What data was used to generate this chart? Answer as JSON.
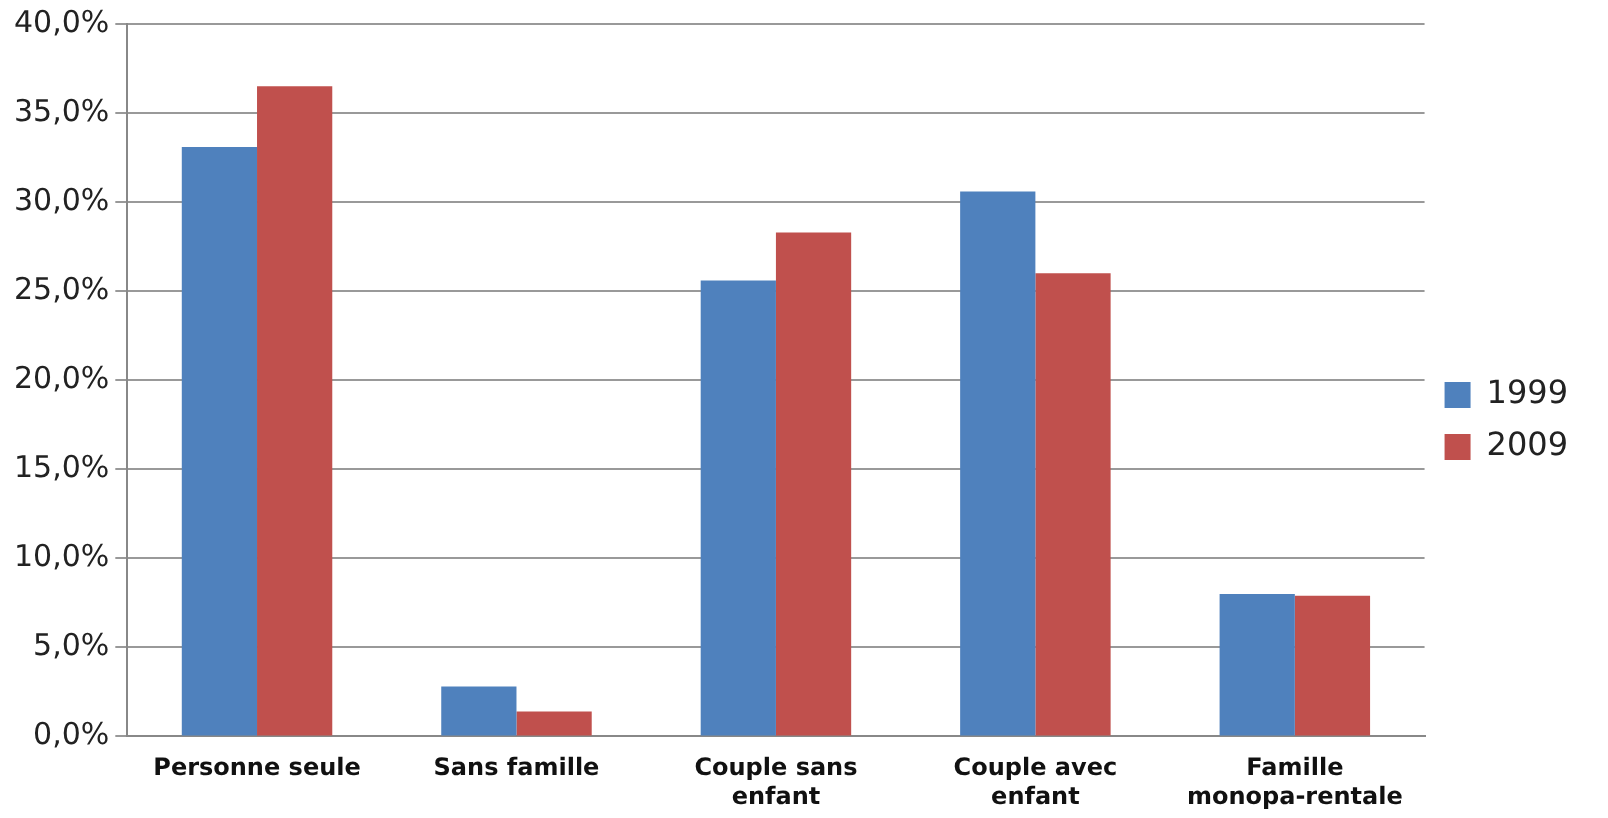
{
  "chart_data": {
    "type": "bar",
    "categories": [
      "Personne seule",
      "Sans famille",
      "Couple sans enfant",
      "Couple avec enfant",
      "Famille monopa-rentale"
    ],
    "series": [
      {
        "name": "1999",
        "color": "#4f81bd",
        "values": [
          33.1,
          2.8,
          25.6,
          30.6,
          8.0
        ]
      },
      {
        "name": "2009",
        "color": "#c0504d",
        "values": [
          36.5,
          1.4,
          28.3,
          26.0,
          7.9
        ]
      }
    ],
    "ylim": [
      0,
      40
    ],
    "yticks": [
      {
        "value": 0,
        "label": "0,0%"
      },
      {
        "value": 5,
        "label": "5,0%"
      },
      {
        "value": 10,
        "label": "10,0%"
      },
      {
        "value": 15,
        "label": "15,0%"
      },
      {
        "value": 20,
        "label": "20,0%"
      },
      {
        "value": 25,
        "label": "25,0%"
      },
      {
        "value": 30,
        "label": "30,0%"
      },
      {
        "value": 35,
        "label": "35,0%"
      },
      {
        "value": 40,
        "label": "40,0%"
      }
    ],
    "grid": "y",
    "legend": "right"
  }
}
